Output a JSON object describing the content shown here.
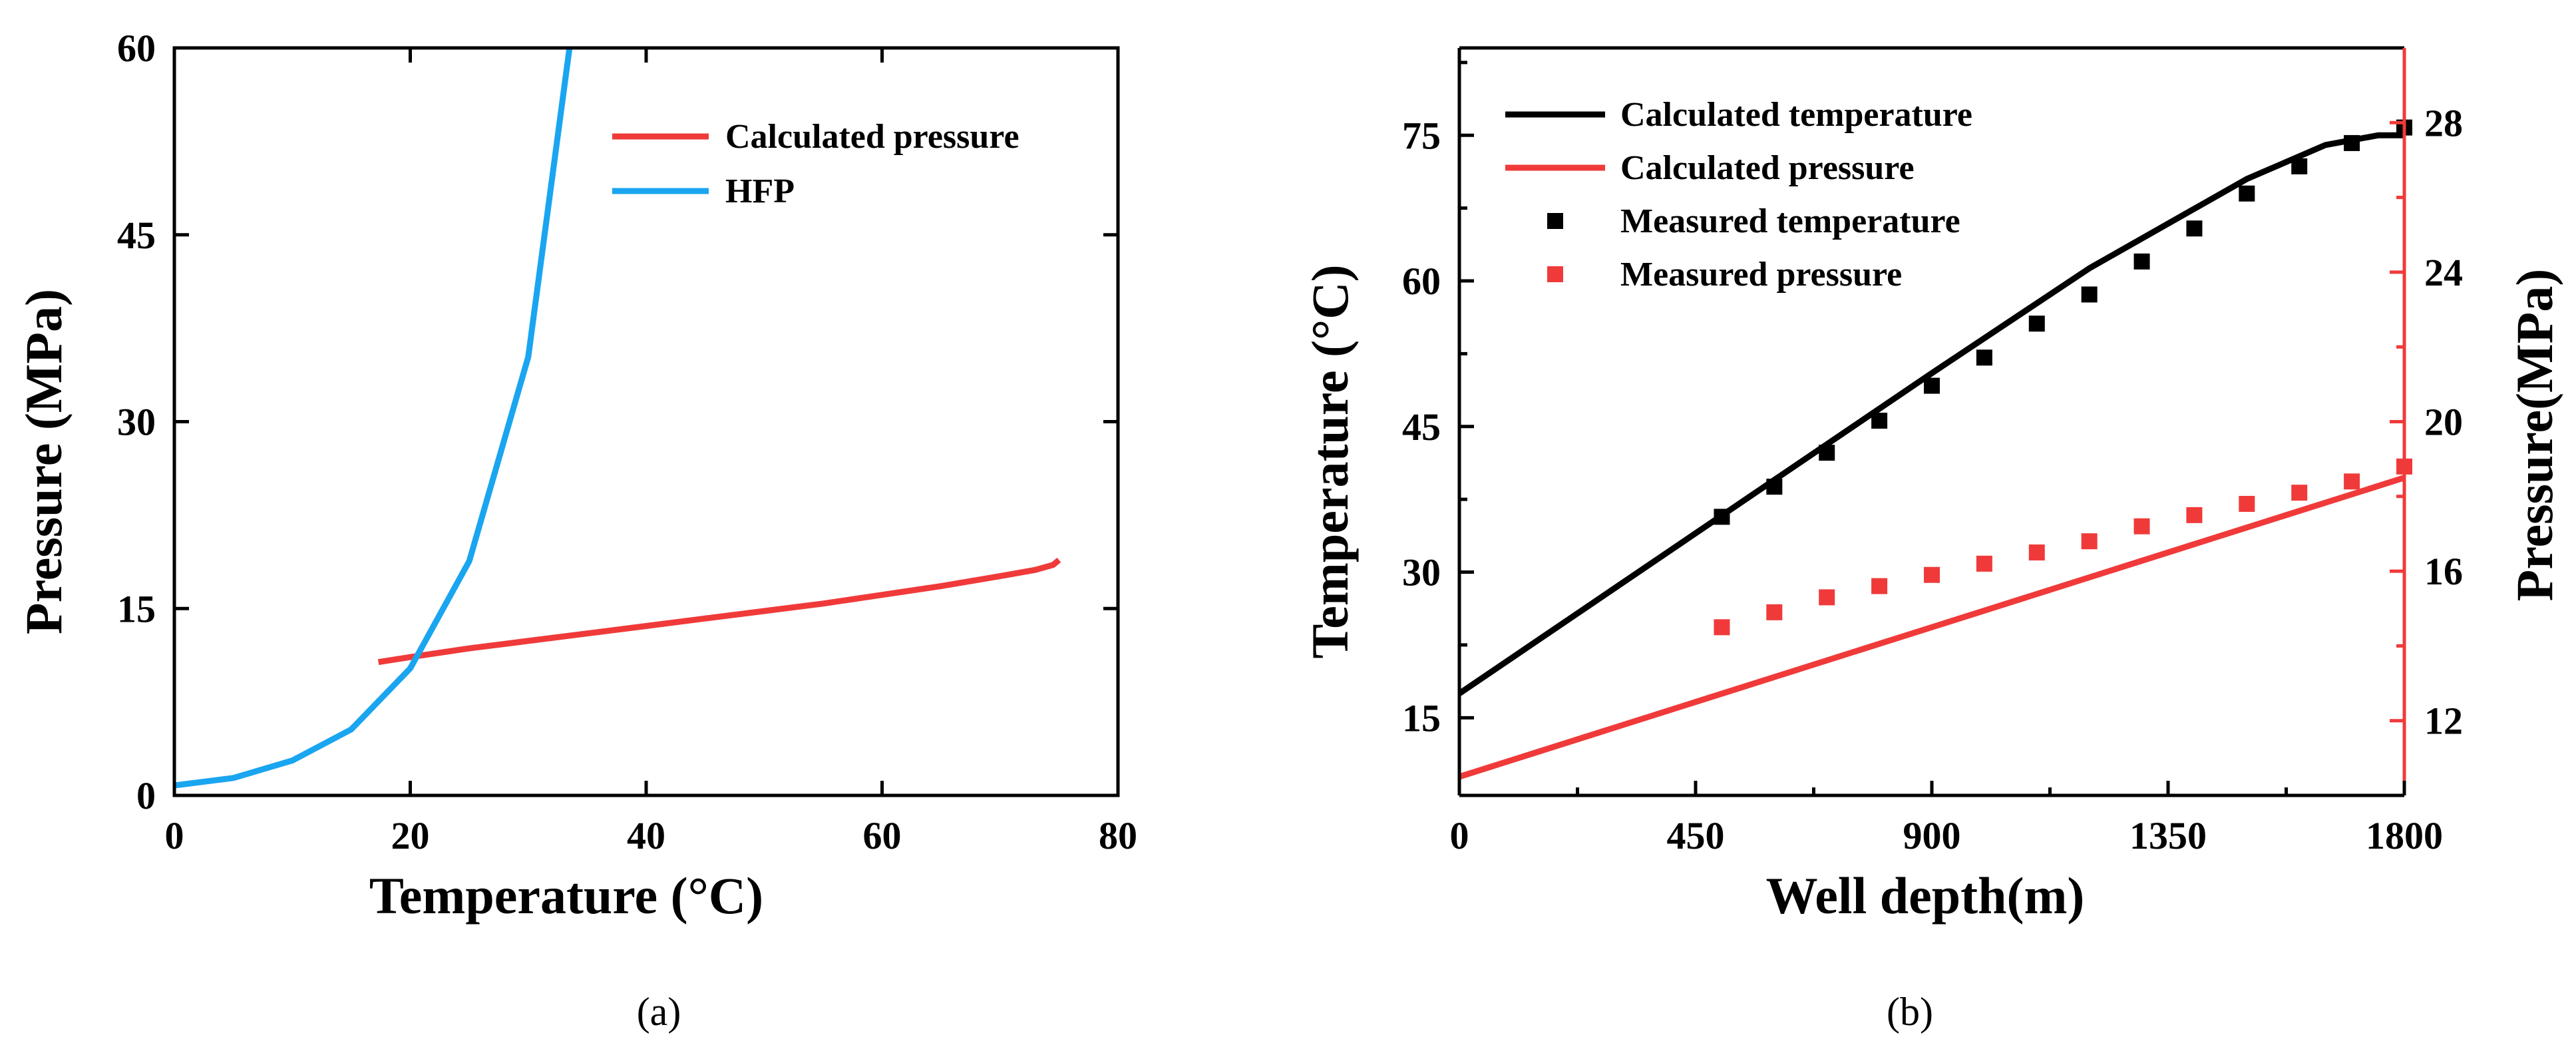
{
  "figure": {
    "caption_a": "(a)",
    "caption_b": "(b)"
  },
  "colors": {
    "red": "#f03a3a",
    "blue": "#1aa5f0",
    "black": "#000000"
  },
  "chart_data": [
    {
      "type": "line",
      "panel": "a",
      "xlabel": "Temperature (°C)",
      "ylabel": "Pressure (MPa)",
      "xlim": [
        0,
        80
      ],
      "ylim": [
        0,
        60
      ],
      "xticks": [
        0,
        20,
        40,
        60,
        80
      ],
      "yticks": [
        0,
        15,
        30,
        45,
        60
      ],
      "legend": {
        "position": "top-right"
      },
      "series": [
        {
          "name": "Calculated pressure",
          "color": "#f03a3a",
          "x": [
            17.3,
            20,
            25,
            30,
            35,
            40,
            45,
            50,
            55,
            60,
            65,
            70,
            73,
            74.5,
            75
          ],
          "y": [
            10.7,
            11.1,
            11.8,
            12.4,
            13.0,
            13.6,
            14.2,
            14.8,
            15.4,
            16.1,
            16.8,
            17.6,
            18.1,
            18.5,
            18.9
          ]
        },
        {
          "name": "HFP",
          "color": "#1aa5f0",
          "x": [
            0,
            5,
            10,
            15,
            20,
            25,
            30,
            33.5
          ],
          "y": [
            0.8,
            1.4,
            2.8,
            5.3,
            10.2,
            18.8,
            35.2,
            60
          ]
        }
      ]
    },
    {
      "type": "line+scatter",
      "panel": "b",
      "xlabel": "Well depth(m)",
      "ylabel": "Temperature (°C)",
      "y2label": "Pressure(MPa)",
      "xlim": [
        0,
        1800
      ],
      "ylim": [
        7,
        84
      ],
      "y2lim": [
        10,
        30
      ],
      "xticks": [
        0,
        450,
        900,
        1350,
        1800
      ],
      "yticks": [
        15,
        30,
        45,
        60,
        75
      ],
      "y2ticks": [
        12,
        16,
        20,
        24,
        28
      ],
      "legend": {
        "position": "top-left"
      },
      "series": [
        {
          "name": "Calculated temperature",
          "kind": "line",
          "axis": "left",
          "color": "#000000",
          "x": [
            0,
            300,
            600,
            900,
            1200,
            1500,
            1650,
            1750,
            1800
          ],
          "y": [
            17.5,
            28.5,
            39.5,
            50.5,
            61.3,
            70.5,
            74.0,
            75.0,
            75.0
          ]
        },
        {
          "name": "Calculated pressure",
          "kind": "line",
          "axis": "right",
          "color": "#f03a3a",
          "x": [
            0,
            1800
          ],
          "y": [
            10.5,
            18.5
          ]
        },
        {
          "name": "Measured temperature",
          "kind": "scatter",
          "axis": "left",
          "color": "#000000",
          "x": [
            500,
            600,
            700,
            800,
            900,
            1000,
            1100,
            1200,
            1300,
            1400,
            1500,
            1600,
            1700,
            1800
          ],
          "y": [
            35.7,
            38.8,
            42.3,
            45.6,
            49.2,
            52.1,
            55.6,
            58.6,
            62.0,
            65.4,
            69.0,
            71.8,
            74.2,
            75.8
          ]
        },
        {
          "name": "Measured pressure",
          "kind": "scatter",
          "axis": "right",
          "color": "#f03a3a",
          "x": [
            500,
            600,
            700,
            800,
            900,
            1000,
            1100,
            1200,
            1300,
            1400,
            1500,
            1600,
            1700,
            1800
          ],
          "y": [
            14.5,
            14.9,
            15.3,
            15.6,
            15.9,
            16.2,
            16.5,
            16.8,
            17.2,
            17.5,
            17.8,
            18.1,
            18.4,
            18.8
          ]
        }
      ]
    }
  ]
}
